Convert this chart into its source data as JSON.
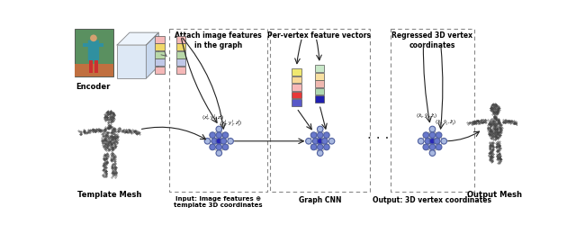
{
  "encoder_label": "Encoder",
  "template_mesh_label": "Template Mesh",
  "output_mesh_label": "Output Mesh",
  "section1_title": "Attach image features\nin the graph",
  "section2_title": "Per-vertex feature vectors",
  "section3_title": "Regressed 3D vertex\ncoordinates",
  "bottom1_label": "Input: Image features ⊕\ntemplate 3D coordinates",
  "bottom2_label": "Graph CNN",
  "bottom3_label": "Output: 3D vertex coordinates",
  "feat_colors_enc": [
    "#f5b8b8",
    "#c0c8e8",
    "#b8d8a8",
    "#f0d868",
    "#f5b8b8"
  ],
  "feat_colors_graph2_left": [
    "#5858c8",
    "#e83838",
    "#f8b8b8",
    "#f8d898",
    "#f0e870"
  ],
  "feat_colors_graph2_right": [
    "#2020b0",
    "#b0d8b0",
    "#f0b8b0",
    "#f8e0a0",
    "#c8e8c8"
  ],
  "bg_color": "#ffffff",
  "node_dark": "#2828b8",
  "node_mid": "#6878cc",
  "node_light": "#a8b8e0",
  "edge_color": "#888888",
  "box_color": "#888888",
  "arrow_color": "#222222"
}
